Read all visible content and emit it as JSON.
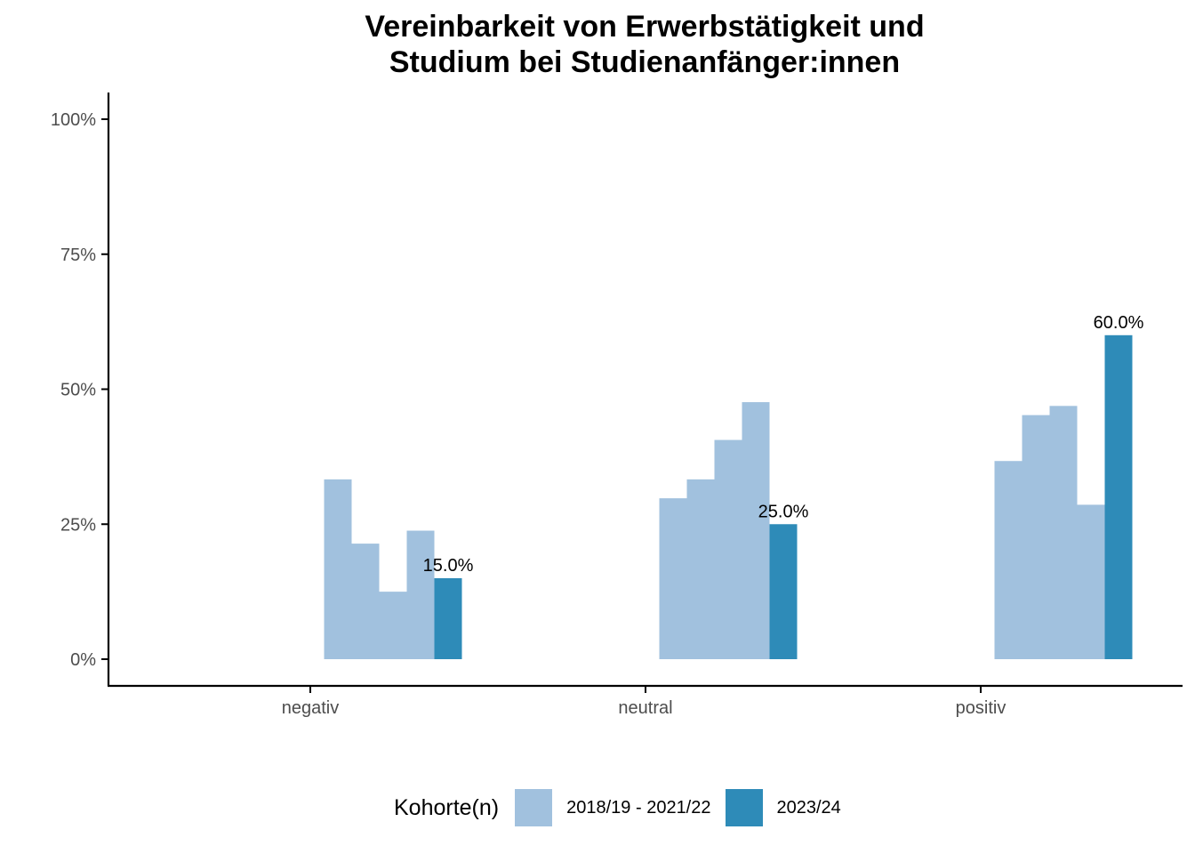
{
  "chart_data": {
    "type": "bar",
    "title_lines": [
      "Vereinbarkeit von Erwerbstätigkeit und",
      "Studium bei Studienanfänger:innen"
    ],
    "categories": [
      "negativ",
      "neutral",
      "positiv"
    ],
    "ylim": [
      0,
      100
    ],
    "y_ticks": [
      0,
      25,
      50,
      75,
      100
    ],
    "y_tick_labels": [
      "0%",
      "25%",
      "50%",
      "75%",
      "100%"
    ],
    "grid": false,
    "legend": {
      "title": "Kohorte(n)",
      "position": "bottom",
      "entries": [
        {
          "label": "2018/19 - 2021/22",
          "color": "#a1c1de"
        },
        {
          "label": "2023/24",
          "color": "#2e8bb8"
        }
      ]
    },
    "series": [
      {
        "cohort": "2018/19 - 2021/22",
        "values": [
          33.3,
          29.8,
          36.7
        ],
        "color": "#a1c1de"
      },
      {
        "cohort": "2018/19 - 2021/22",
        "values": [
          21.4,
          33.3,
          45.2
        ],
        "color": "#a1c1de"
      },
      {
        "cohort": "2018/19 - 2021/22",
        "values": [
          12.5,
          40.6,
          46.9
        ],
        "color": "#a1c1de"
      },
      {
        "cohort": "2018/19 - 2021/22",
        "values": [
          23.8,
          47.6,
          28.6
        ],
        "color": "#a1c1de"
      },
      {
        "cohort": "2023/24",
        "values": [
          15.0,
          25.0,
          60.0
        ],
        "color": "#2e8bb8",
        "data_labels": [
          "15.0%",
          "25.0%",
          "60.0%"
        ]
      }
    ]
  }
}
